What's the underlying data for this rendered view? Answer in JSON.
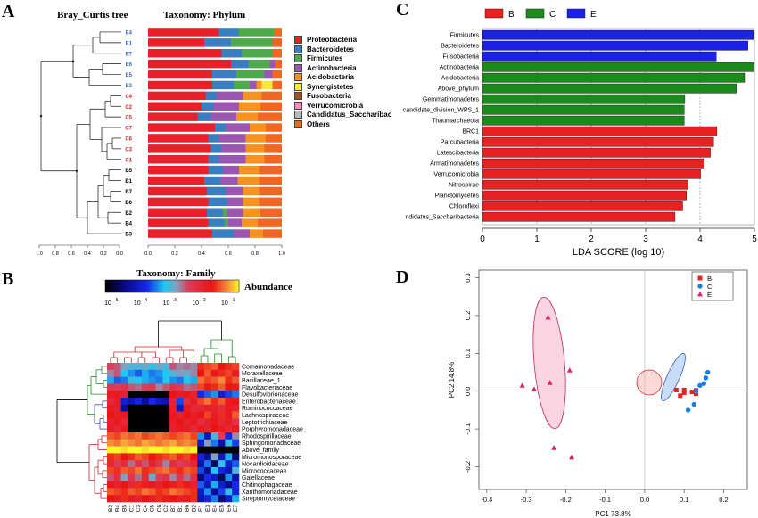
{
  "panel_labels": {
    "a": "A",
    "b": "B",
    "c": "C",
    "d": "D"
  },
  "panelA": {
    "tree_title": "Bray_Curtis tree",
    "bar_title": "Taxonomy: Phylum",
    "samples": [
      {
        "name": "E4",
        "group": "E"
      },
      {
        "name": "E1",
        "group": "E"
      },
      {
        "name": "E7",
        "group": "E"
      },
      {
        "name": "E6",
        "group": "E"
      },
      {
        "name": "E5",
        "group": "E"
      },
      {
        "name": "E3",
        "group": "E"
      },
      {
        "name": "C4",
        "group": "C"
      },
      {
        "name": "C2",
        "group": "C"
      },
      {
        "name": "C5",
        "group": "C"
      },
      {
        "name": "C7",
        "group": "C"
      },
      {
        "name": "C6",
        "group": "C"
      },
      {
        "name": "C3",
        "group": "C"
      },
      {
        "name": "C1",
        "group": "C"
      },
      {
        "name": "B5",
        "group": "B"
      },
      {
        "name": "B1",
        "group": "B"
      },
      {
        "name": "B7",
        "group": "B"
      },
      {
        "name": "B6",
        "group": "B"
      },
      {
        "name": "B2",
        "group": "B"
      },
      {
        "name": "B4",
        "group": "B"
      },
      {
        "name": "B3",
        "group": "B"
      }
    ],
    "group_colors": {
      "E": "#2f6fd0",
      "C": "#e02020",
      "B": "#000000"
    },
    "tree_axis_ticks": [
      "1.0",
      "0.8",
      "0.6",
      "0.4",
      "0.2",
      "0.0"
    ],
    "bar_axis_ticks": [
      "0.0",
      "0.2",
      "0.4",
      "0.6",
      "0.8",
      "1.0"
    ],
    "chart_data": {
      "type": "bar",
      "orientation": "horizontal-stacked",
      "xlim": [
        0,
        1
      ],
      "legend": [
        {
          "name": "Proteobacteria",
          "color": "#e8202a"
        },
        {
          "name": "Bacteroidetes",
          "color": "#3a7ec2"
        },
        {
          "name": "Firmicutes",
          "color": "#4daa4a"
        },
        {
          "name": "Actinobacteria",
          "color": "#9a56b0"
        },
        {
          "name": "Acidobacteria",
          "color": "#f7921e"
        },
        {
          "name": "Synergistetes",
          "color": "#f7e93a"
        },
        {
          "name": "Fusobacteria",
          "color": "#a0522d"
        },
        {
          "name": "Verrucomicrobia",
          "color": "#f48fc0"
        },
        {
          "name": "Candidatus_Saccharibac",
          "color": "#b8b8b8"
        },
        {
          "name": "Others",
          "color": "#f26522"
        }
      ],
      "values": [
        [
          0.53,
          0.15,
          0.26,
          0.0,
          0.0,
          0.0,
          0.0,
          0.0,
          0.0,
          0.06
        ],
        [
          0.42,
          0.2,
          0.31,
          0.0,
          0.0,
          0.0,
          0.0,
          0.0,
          0.0,
          0.07
        ],
        [
          0.55,
          0.15,
          0.23,
          0.0,
          0.0,
          0.0,
          0.0,
          0.0,
          0.0,
          0.07
        ],
        [
          0.62,
          0.13,
          0.16,
          0.04,
          0.0,
          0.0,
          0.0,
          0.0,
          0.0,
          0.05
        ],
        [
          0.48,
          0.18,
          0.21,
          0.06,
          0.0,
          0.0,
          0.0,
          0.0,
          0.0,
          0.07
        ],
        [
          0.48,
          0.16,
          0.12,
          0.05,
          0.04,
          0.08,
          0.0,
          0.0,
          0.0,
          0.07
        ],
        [
          0.43,
          0.08,
          0.0,
          0.2,
          0.14,
          0.0,
          0.0,
          0.0,
          0.0,
          0.15
        ],
        [
          0.4,
          0.09,
          0.0,
          0.19,
          0.16,
          0.0,
          0.0,
          0.0,
          0.0,
          0.16
        ],
        [
          0.37,
          0.1,
          0.0,
          0.19,
          0.16,
          0.0,
          0.0,
          0.0,
          0.0,
          0.18
        ],
        [
          0.5,
          0.08,
          0.0,
          0.18,
          0.12,
          0.0,
          0.0,
          0.0,
          0.0,
          0.12
        ],
        [
          0.45,
          0.08,
          0.0,
          0.2,
          0.15,
          0.0,
          0.0,
          0.0,
          0.0,
          0.12
        ],
        [
          0.47,
          0.08,
          0.0,
          0.18,
          0.14,
          0.0,
          0.0,
          0.0,
          0.0,
          0.13
        ],
        [
          0.45,
          0.08,
          0.0,
          0.2,
          0.14,
          0.0,
          0.0,
          0.0,
          0.0,
          0.13
        ],
        [
          0.45,
          0.11,
          0.0,
          0.12,
          0.15,
          0.0,
          0.0,
          0.0,
          0.0,
          0.17
        ],
        [
          0.42,
          0.12,
          0.0,
          0.13,
          0.16,
          0.0,
          0.0,
          0.0,
          0.0,
          0.17
        ],
        [
          0.44,
          0.14,
          0.0,
          0.13,
          0.12,
          0.0,
          0.0,
          0.0,
          0.0,
          0.17
        ],
        [
          0.45,
          0.14,
          0.0,
          0.12,
          0.12,
          0.0,
          0.0,
          0.0,
          0.0,
          0.17
        ],
        [
          0.44,
          0.12,
          0.03,
          0.12,
          0.13,
          0.0,
          0.0,
          0.0,
          0.0,
          0.16
        ],
        [
          0.45,
          0.12,
          0.03,
          0.1,
          0.12,
          0.0,
          0.0,
          0.0,
          0.0,
          0.18
        ],
        [
          0.48,
          0.16,
          0.0,
          0.12,
          0.1,
          0.0,
          0.0,
          0.0,
          0.0,
          0.14
        ]
      ]
    }
  },
  "panelB": {
    "title": "Taxonomy: Family",
    "scale_label": "Abundance",
    "scale_ticks": [
      "10",
      "10",
      "10",
      "10",
      "10"
    ],
    "scale_exp": [
      "-5",
      "-4",
      "-3",
      "-2",
      "-1"
    ],
    "families": [
      "Comamonadaceae",
      "Moraxellaceae",
      "Bacillaceae_1",
      "Flavobacteriaceae",
      "Desulfovibrionaceae",
      "Enterobacteriaceae",
      "Ruminococcaceae",
      "Lachnospiraceae",
      "Leptotrichiaceae",
      "Porphyromonadaceae",
      "Rhodospirillaceae",
      "Sphingomonadaceae",
      "Above_family",
      "Micromonosporaceae",
      "Nocardioidaceae",
      "Micrococcaceae",
      "Gaiellaceae",
      "Chitinophagaceae",
      "Xanthomonadaceae",
      "Streptomycetaceae"
    ],
    "columns": [
      "B3",
      "B4",
      "B5",
      "C1",
      "C3",
      "C4",
      "C5",
      "C6",
      "C2",
      "B7",
      "B1",
      "B6",
      "B2",
      "E1",
      "E3",
      "E4",
      "E5",
      "E6",
      "E7"
    ],
    "chart_data": {
      "type": "heatmap",
      "scale": "log10",
      "range": [
        -5,
        -0.5
      ],
      "values": [
        [
          -2.2,
          -2.3,
          -2.6,
          -2.8,
          -2.8,
          -2.7,
          -2.9,
          -2.7,
          -2.8,
          -2.3,
          -2.5,
          -2.4,
          -2.5,
          -1.3,
          -1.2,
          -1.1,
          -1.4,
          -1.3,
          -1.2
        ],
        [
          -2.5,
          -2.3,
          -3.0,
          -3.2,
          -3.4,
          -3.1,
          -3.3,
          -3.2,
          -3.0,
          -2.8,
          -2.6,
          -2.7,
          -2.5,
          -1.4,
          -1.1,
          -1.5,
          -1.3,
          -1.2,
          -1.6
        ],
        [
          -3.1,
          -3.4,
          -3.3,
          -2.9,
          -3.0,
          -3.1,
          -3.2,
          -3.3,
          -3.0,
          -3.2,
          -3.3,
          -3.0,
          -3.1,
          -1.0,
          -1.2,
          -1.1,
          -0.9,
          -1.3,
          -1.1
        ],
        [
          -2.1,
          -2.2,
          -2.0,
          -2.3,
          -2.4,
          -2.2,
          -2.1,
          -2.5,
          -2.3,
          -2.0,
          -2.2,
          -2.4,
          -2.3,
          -1.2,
          -1.5,
          -1.3,
          -1.1,
          -1.4,
          -1.6
        ],
        [
          -1.6,
          -1.5,
          -1.7,
          -5.0,
          -5.0,
          -5.0,
          -5.0,
          -5.0,
          -5.0,
          -1.4,
          -1.6,
          -1.5,
          -1.7,
          -3.6,
          -3.4,
          -3.2,
          -3.8,
          -3.5,
          -3.3
        ],
        [
          -1.8,
          -1.6,
          -3.8,
          -4.0,
          -3.7,
          -4.2,
          -3.6,
          -3.9,
          -4.1,
          -1.7,
          -3.5,
          -1.9,
          -1.6,
          -1.2,
          -1.0,
          -1.3,
          -1.1,
          -1.5,
          -1.4
        ],
        [
          -1.5,
          -1.7,
          -4.2,
          -5.0,
          -5.0,
          -5.0,
          -5.0,
          -5.0,
          -5.0,
          -1.6,
          -3.9,
          -1.5,
          -1.8,
          -1.8,
          -1.6,
          -1.7,
          -1.9,
          -1.5,
          -1.7
        ],
        [
          -1.4,
          -1.6,
          -1.5,
          -5.0,
          -5.0,
          -5.0,
          -5.0,
          -5.0,
          -5.0,
          -1.5,
          -1.7,
          -1.4,
          -1.6,
          -1.4,
          -1.2,
          -1.6,
          -1.3,
          -1.5,
          -1.1
        ],
        [
          -1.7,
          -1.5,
          -1.8,
          -5.0,
          -5.0,
          -5.0,
          -5.0,
          -5.0,
          -5.0,
          -1.6,
          -1.4,
          -1.7,
          -1.5,
          -1.9,
          -1.7,
          -1.5,
          -1.8,
          -1.6,
          -2.0
        ],
        [
          -1.6,
          -1.8,
          -1.5,
          -5.0,
          -5.0,
          -5.0,
          -5.0,
          -5.0,
          -5.0,
          -1.7,
          -1.5,
          -1.6,
          -1.8,
          -1.5,
          -1.7,
          -1.4,
          -1.6,
          -1.8,
          -1.5
        ],
        [
          -1.1,
          -1.2,
          -1.0,
          -1.1,
          -1.0,
          -1.2,
          -1.1,
          -1.0,
          -1.1,
          -1.2,
          -1.1,
          -1.0,
          -1.2,
          -3.2,
          -4.0,
          -2.8,
          -2.2,
          -3.6,
          -2.5
        ],
        [
          -0.9,
          -1.0,
          -0.8,
          -0.9,
          -1.0,
          -0.8,
          -0.9,
          -1.0,
          -0.9,
          -0.8,
          -1.0,
          -0.9,
          -1.0,
          -3.8,
          -2.6,
          -3.3,
          -4.1,
          -2.9,
          -3.5
        ],
        [
          -0.5,
          -0.5,
          -0.6,
          -0.5,
          -0.5,
          -0.6,
          -0.5,
          -0.5,
          -0.6,
          -0.5,
          -0.5,
          -0.6,
          -0.5,
          -5.0,
          -5.0,
          -5.0,
          -5.0,
          -5.0,
          -5.0
        ],
        [
          -1.3,
          -1.2,
          -1.4,
          -1.3,
          -1.1,
          -1.2,
          -1.4,
          -1.3,
          -1.2,
          -1.1,
          -1.3,
          -1.2,
          -1.4,
          -3.7,
          -4.2,
          -2.6,
          -3.9,
          -3.1,
          -4.4
        ],
        [
          -1.8,
          -2.2,
          -1.9,
          -2.4,
          -2.0,
          -2.3,
          -1.7,
          -2.1,
          -2.5,
          -1.9,
          -2.2,
          -2.0,
          -1.8,
          -4.1,
          -3.3,
          -4.5,
          -2.9,
          -3.8,
          -3.4
        ],
        [
          -1.2,
          -1.3,
          -1.1,
          -1.2,
          -1.0,
          -1.3,
          -1.2,
          -1.1,
          -1.0,
          -1.2,
          -1.3,
          -1.1,
          -1.2,
          -3.5,
          -4.3,
          -3.0,
          -3.7,
          -4.0,
          -2.8
        ],
        [
          -2.3,
          -1.9,
          -2.6,
          -2.1,
          -2.4,
          -1.8,
          -2.7,
          -2.2,
          -2.0,
          -2.5,
          -2.1,
          -2.4,
          -1.9,
          -4.4,
          -3.6,
          -3.9,
          -4.6,
          -3.2,
          -4.1
        ],
        [
          -1.5,
          -1.7,
          -1.4,
          -1.8,
          -1.3,
          -1.6,
          -1.5,
          -1.7,
          -1.4,
          -1.6,
          -1.3,
          -1.5,
          -1.7,
          -3.4,
          -4.0,
          -3.1,
          -3.8,
          -4.3,
          -3.6
        ],
        [
          -1.1,
          -1.2,
          -1.3,
          -1.1,
          -1.2,
          -1.0,
          -1.1,
          -1.3,
          -1.2,
          -1.0,
          -1.1,
          -1.2,
          -1.3,
          -3.9,
          -3.2,
          -4.2,
          -3.5,
          -2.9,
          -3.7
        ],
        [
          -1.4,
          -1.6,
          -1.3,
          -1.5,
          -1.7,
          -1.4,
          -1.6,
          -1.3,
          -1.5,
          -1.4,
          -1.6,
          -1.5,
          -1.3,
          -4.0,
          -3.7,
          -3.3,
          -4.4,
          -3.8,
          -3.1
        ]
      ]
    }
  },
  "panelC": {
    "legend": [
      {
        "name": "B",
        "color": "#e82020"
      },
      {
        "name": "C",
        "color": "#1a8a1a"
      },
      {
        "name": "E",
        "color": "#1a22e8"
      }
    ],
    "chart_data": {
      "type": "bar",
      "orientation": "horizontal",
      "xlabel": "LDA SCORE (log 10)",
      "xlim": [
        0,
        5
      ],
      "xticks": [
        "0",
        "1",
        "2",
        "3",
        "4",
        "5"
      ],
      "categories": [
        "Firmicutes",
        "Bacteroidetes",
        "Fusobacteria",
        "Actinobacteria",
        "Acidobacteria",
        "Above_phylum",
        "Gemmatimonadetes",
        "candidate_division_WPS_1",
        "Thaumarchaeota",
        "BRC1",
        "Parcubacteria",
        "Latescibacteria",
        "Armatimonadetes",
        "Verrucomicrobia",
        "Nitrospirae",
        "Planctomycetes",
        "Chloroflexi",
        "ndidatus_Saccharibacteria"
      ],
      "groups": [
        "E",
        "E",
        "E",
        "C",
        "C",
        "C",
        "C",
        "C",
        "C",
        "B",
        "B",
        "B",
        "B",
        "B",
        "B",
        "B",
        "B",
        "B"
      ],
      "values": [
        4.98,
        4.88,
        4.3,
        4.99,
        4.82,
        4.67,
        3.72,
        3.71,
        3.71,
        4.31,
        4.25,
        4.19,
        4.08,
        4.01,
        3.78,
        3.75,
        3.68,
        3.54
      ]
    }
  },
  "panelD": {
    "legend": [
      {
        "name": "B",
        "color": "#e82020",
        "shape": "square"
      },
      {
        "name": "C",
        "color": "#1a7fe0",
        "shape": "circle"
      },
      {
        "name": "E",
        "color": "#e0206a",
        "shape": "triangle"
      }
    ],
    "chart_data": {
      "type": "scatter",
      "xlabel": "PC1 73.8%",
      "ylabel": "PC2 14.8%",
      "xlim": [
        -0.42,
        0.26
      ],
      "ylim": [
        -0.26,
        0.32
      ],
      "xticks": [
        -0.4,
        -0.3,
        -0.2,
        -0.1,
        0.0,
        0.1,
        0.2
      ],
      "yticks": [
        -0.2,
        -0.1,
        0.0,
        0.1,
        0.2,
        0.3
      ],
      "series": [
        {
          "name": "B",
          "points": [
            [
              0.08,
              0.003
            ],
            [
              0.09,
              -0.012
            ],
            [
              0.1,
              0.003
            ],
            [
              0.1,
              -0.004
            ],
            [
              0.12,
              -0.002
            ],
            [
              0.13,
              0.002
            ],
            [
              0.13,
              -0.007
            ]
          ]
        },
        {
          "name": "C",
          "points": [
            [
              0.11,
              -0.05
            ],
            [
              0.13,
              0.0
            ],
            [
              0.14,
              0.015
            ],
            [
              0.15,
              0.02
            ],
            [
              0.155,
              0.035
            ],
            [
              0.16,
              0.05
            ],
            [
              0.125,
              -0.035
            ]
          ]
        },
        {
          "name": "E",
          "points": [
            [
              -0.245,
              0.195
            ],
            [
              -0.31,
              0.015
            ],
            [
              -0.28,
              0.005
            ],
            [
              -0.24,
              0.022
            ],
            [
              -0.19,
              0.055
            ],
            [
              -0.185,
              -0.175
            ],
            [
              -0.23,
              -0.15
            ]
          ]
        }
      ]
    }
  }
}
